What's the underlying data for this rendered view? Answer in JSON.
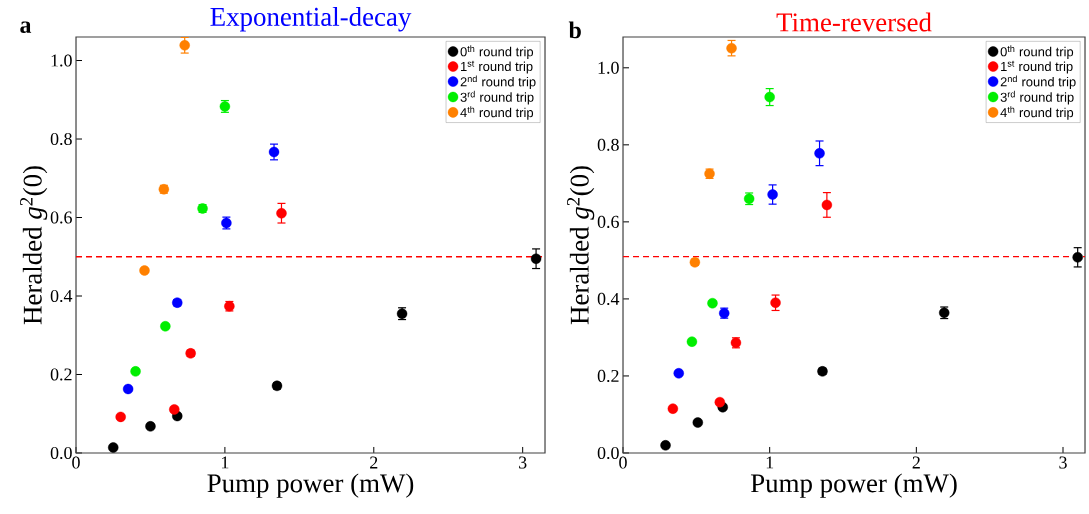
{
  "chart_data": [
    {
      "type": "scatter",
      "title": "Exponential-decay",
      "xlabel": "Pump power (mW)",
      "ylabel": "Heralded *g*$^{2}$(0)",
      "annotations": [
        "a"
      ],
      "xlim": [
        0,
        3.15
      ],
      "ylim": [
        0,
        1.06
      ],
      "xticks": [
        0,
        1,
        2,
        3
      ],
      "yticks": [
        {
          "value": 0,
          "label": "0.0"
        },
        {
          "value": 0.2,
          "label": "0.2"
        },
        {
          "value": 0.4,
          "label": "0.4"
        },
        {
          "value": 0.6,
          "label": "0.6"
        },
        {
          "value": 0.8,
          "label": "0.8"
        },
        {
          "value": 1.0,
          "label": "1.0"
        }
      ],
      "legend": "top right",
      "marker": "circle",
      "grid": false,
      "ref_lines": [
        {
          "axis": "y",
          "value": 0.5,
          "color": "#ff0000",
          "line_style": "dashed"
        }
      ],
      "series": [
        {
          "name": "0$^{th}$ round trip",
          "color": "#000000",
          "x": [
            0.25,
            0.5,
            0.68,
            1.35,
            2.19,
            3.09
          ],
          "values": [
            0.014,
            0.068,
            0.094,
            0.171,
            0.355,
            0.495
          ],
          "errors": [
            0.004,
            0.005,
            0.006,
            0.008,
            0.015,
            0.025
          ]
        },
        {
          "name": "1$^{st}$ round trip",
          "color": "#ff0000",
          "x": [
            0.3,
            0.66,
            0.77,
            1.03,
            1.38
          ],
          "values": [
            0.092,
            0.111,
            0.254,
            0.374,
            0.611
          ],
          "errors": [
            0.005,
            0.006,
            0.008,
            0.012,
            0.025
          ]
        },
        {
          "name": "2$^{nd}$ round trip",
          "color": "#0000ff",
          "x": [
            0.35,
            0.68,
            1.01,
            1.33
          ],
          "values": [
            0.163,
            0.383,
            0.586,
            0.767
          ],
          "errors": [
            0.005,
            0.008,
            0.015,
            0.02
          ]
        },
        {
          "name": "3$^{rd}$ round trip",
          "color": "#00ee00",
          "x": [
            0.4,
            0.6,
            0.85,
            1.0
          ],
          "values": [
            0.208,
            0.323,
            0.623,
            0.883
          ],
          "errors": [
            0.005,
            0.005,
            0.01,
            0.015
          ]
        },
        {
          "name": "4$^{th}$ round trip",
          "color": "#ff8000",
          "x": [
            0.46,
            0.59,
            0.73
          ],
          "values": [
            0.465,
            0.672,
            1.039
          ],
          "errors": [
            0.005,
            0.01,
            0.02
          ]
        }
      ]
    },
    {
      "type": "scatter",
      "title": "Time-reversed",
      "xlabel": "Pump power (mW)",
      "ylabel": "Heralded *g*$^{2}$(0)",
      "annotations": [
        "b"
      ],
      "xlim": [
        0,
        3.15
      ],
      "ylim": [
        0,
        1.08
      ],
      "xticks": [
        0,
        1,
        2,
        3
      ],
      "yticks": [
        {
          "value": 0,
          "label": "0.0"
        },
        {
          "value": 0.2,
          "label": "0.2"
        },
        {
          "value": 0.4,
          "label": "0.4"
        },
        {
          "value": 0.6,
          "label": "0.6"
        },
        {
          "value": 0.8,
          "label": "0.8"
        },
        {
          "value": 1.0,
          "label": "1.0"
        }
      ],
      "legend": "top right",
      "marker": "circle",
      "grid": false,
      "ref_lines": [
        {
          "axis": "y",
          "value": 0.51,
          "color": "#ff0000",
          "line_style": "dashed"
        }
      ],
      "series": [
        {
          "name": "0$^{th}$ round trip",
          "color": "#000000",
          "x": [
            0.29,
            0.51,
            0.68,
            1.36,
            2.19,
            3.1
          ],
          "values": [
            0.02,
            0.079,
            0.119,
            0.212,
            0.364,
            0.508
          ],
          "errors": [
            0.004,
            0.005,
            0.006,
            0.008,
            0.015,
            0.025
          ]
        },
        {
          "name": "1$^{st}$ round trip",
          "color": "#ff0000",
          "x": [
            0.34,
            0.66,
            0.77,
            1.04,
            1.39
          ],
          "values": [
            0.115,
            0.132,
            0.286,
            0.39,
            0.644
          ],
          "errors": [
            0.005,
            0.006,
            0.013,
            0.02,
            0.032
          ]
        },
        {
          "name": "2$^{nd}$ round trip",
          "color": "#0000ff",
          "x": [
            0.38,
            0.69,
            1.02,
            1.34
          ],
          "values": [
            0.207,
            0.363,
            0.671,
            0.778
          ],
          "errors": [
            0.005,
            0.013,
            0.025,
            0.032
          ]
        },
        {
          "name": "3$^{rd}$ round trip",
          "color": "#00ee00",
          "x": [
            0.47,
            0.61,
            0.86,
            1.0
          ],
          "values": [
            0.289,
            0.389,
            0.66,
            0.924
          ],
          "errors": [
            0.005,
            0.006,
            0.015,
            0.022
          ]
        },
        {
          "name": "4$^{th}$ round trip",
          "color": "#ff8000",
          "x": [
            0.49,
            0.59,
            0.74
          ],
          "values": [
            0.495,
            0.725,
            1.051
          ],
          "errors": [
            0.008,
            0.012,
            0.02
          ]
        }
      ]
    }
  ]
}
